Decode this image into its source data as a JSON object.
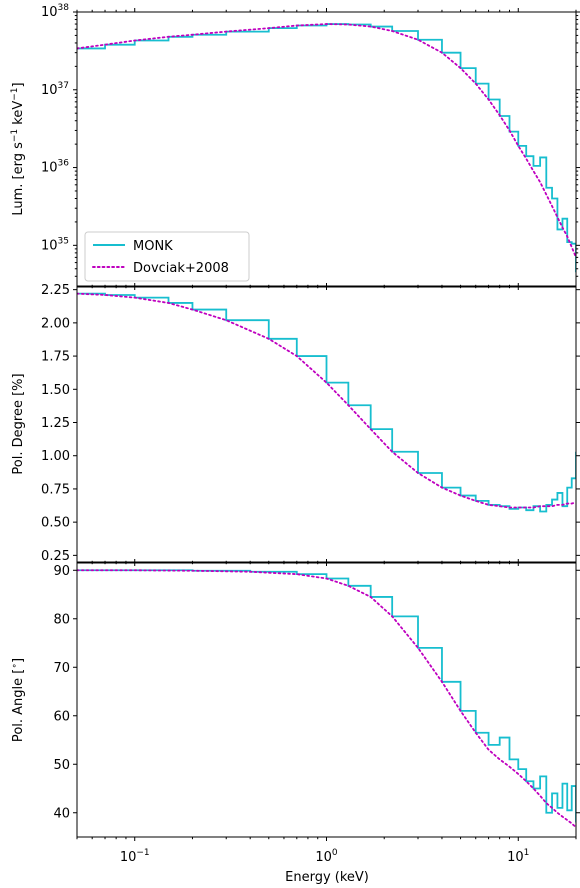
{
  "chart_data": [
    {
      "type": "line",
      "ylabel": "Lum. [erg s$^{-1}$ keV$^{-1}$]",
      "ylabel_parts": [
        "Lum. [erg s",
        "−1",
        " keV",
        "−1",
        "]"
      ],
      "xscale": "log",
      "yscale": "log",
      "xlim": [
        0.05,
        20
      ],
      "ylim": [
        3e+34,
        1e+38
      ],
      "y_ticklabels": [
        {
          "value": 1e+35,
          "base": "10",
          "exp": "35"
        },
        {
          "value": 1e+36,
          "base": "10",
          "exp": "36"
        },
        {
          "value": 1e+37,
          "base": "10",
          "exp": "37"
        },
        {
          "value": 1e+38,
          "base": "10",
          "exp": "38"
        }
      ],
      "legend": {
        "placement": "lower-left",
        "entries": [
          "MONK",
          "Dovciak+2008"
        ]
      },
      "series": [
        {
          "name": "MONK",
          "style": "solid-steps",
          "color": "#17becf",
          "x": [
            0.05,
            0.07,
            0.1,
            0.15,
            0.2,
            0.3,
            0.5,
            0.7,
            1.0,
            1.3,
            1.7,
            2.2,
            3.0,
            4.0,
            5.0,
            6.0,
            7.0,
            8.0,
            9.0,
            10.0,
            11.0,
            12.0,
            13.0,
            14.0,
            15.0,
            16.0,
            17.0,
            18.0,
            19.0,
            20.0
          ],
          "y": [
            3.4e+37,
            3.8e+37,
            4.3e+37,
            4.8e+37,
            5.1e+37,
            5.6e+37,
            6.2e+37,
            6.7e+37,
            7e+37,
            6.9e+37,
            6.5e+37,
            5.7e+37,
            4.4e+37,
            3e+37,
            1.9e+37,
            1.2e+37,
            7.5e+36,
            4.6e+36,
            2.9e+36,
            1.9e+36,
            1.4e+36,
            1.05e+36,
            1.35e+36,
            5.5e+35,
            4e+35,
            1.6e+35,
            2.2e+35,
            1.1e+35,
            1.05e+35,
            4.5e+34
          ]
        },
        {
          "name": "Dovciak+2008",
          "style": "dotted",
          "color": "#bf00bf",
          "x": [
            0.05,
            0.07,
            0.1,
            0.15,
            0.2,
            0.3,
            0.5,
            0.7,
            1.0,
            1.3,
            1.7,
            2.2,
            3.0,
            4.0,
            5.0,
            6.0,
            7.0,
            8.0,
            9.0,
            10.0,
            11.0,
            12.0,
            13.0,
            14.0,
            15.0,
            16.0,
            17.0,
            18.0,
            19.0,
            20.0
          ],
          "y": [
            3.4e+37,
            3.8e+37,
            4.3e+37,
            4.8e+37,
            5.1e+37,
            5.6e+37,
            6.2e+37,
            6.7e+37,
            7e+37,
            6.9e+37,
            6.5e+37,
            5.7e+37,
            4.4e+37,
            3e+37,
            1.9e+37,
            1.2e+37,
            7.5e+36,
            4.7e+36,
            3e+36,
            1.9e+36,
            1.3e+36,
            9e+35,
            6.5e+35,
            4.5e+35,
            3.2e+35,
            2.3e+35,
            1.7e+35,
            1.3e+35,
            9.5e+34,
            7e+34
          ]
        }
      ]
    },
    {
      "type": "line",
      "ylabel": "Pol. Degree [%]",
      "xscale": "log",
      "yscale": "linear",
      "xlim": [
        0.05,
        20
      ],
      "ylim": [
        0.2,
        2.27
      ],
      "y_ticks": [
        0.25,
        0.5,
        0.75,
        1.0,
        1.25,
        1.5,
        1.75,
        2.0,
        2.25
      ],
      "y_ticklabels": [
        "0.25",
        "0.50",
        "0.75",
        "1.00",
        "1.25",
        "1.50",
        "1.75",
        "2.00",
        "2.25"
      ],
      "series": [
        {
          "name": "MONK",
          "style": "solid-steps",
          "color": "#17becf",
          "x": [
            0.05,
            0.07,
            0.1,
            0.15,
            0.2,
            0.3,
            0.5,
            0.7,
            1.0,
            1.3,
            1.7,
            2.2,
            3.0,
            4.0,
            5.0,
            6.0,
            7.0,
            8.0,
            9.0,
            10.0,
            11.0,
            12.0,
            13.0,
            14.0,
            15.0,
            16.0,
            17.0,
            18.0,
            19.0,
            20.0
          ],
          "y": [
            2.22,
            2.21,
            2.19,
            2.15,
            2.1,
            2.02,
            1.88,
            1.75,
            1.55,
            1.38,
            1.2,
            1.03,
            0.87,
            0.76,
            0.7,
            0.66,
            0.63,
            0.62,
            0.6,
            0.61,
            0.59,
            0.62,
            0.58,
            0.63,
            0.67,
            0.72,
            0.62,
            0.76,
            0.83,
            1.03
          ]
        },
        {
          "name": "Dovciak+2008",
          "style": "dotted",
          "color": "#bf00bf",
          "x": [
            0.05,
            0.07,
            0.1,
            0.15,
            0.2,
            0.3,
            0.5,
            0.7,
            1.0,
            1.3,
            1.7,
            2.2,
            3.0,
            4.0,
            5.0,
            6.0,
            7.0,
            8.0,
            9.0,
            10.0,
            11.0,
            12.0,
            13.0,
            14.0,
            15.0,
            16.0,
            17.0,
            18.0,
            19.0,
            20.0
          ],
          "y": [
            2.22,
            2.21,
            2.19,
            2.15,
            2.1,
            2.02,
            1.88,
            1.75,
            1.55,
            1.38,
            1.2,
            1.03,
            0.87,
            0.76,
            0.7,
            0.66,
            0.63,
            0.62,
            0.61,
            0.61,
            0.61,
            0.61,
            0.62,
            0.62,
            0.62,
            0.63,
            0.63,
            0.64,
            0.64,
            0.65
          ]
        }
      ]
    },
    {
      "type": "line",
      "ylabel": "Pol. Angle [$^\\circ$]",
      "ylabel_parts": [
        "Pol. Angle [",
        "∘",
        "]"
      ],
      "xlabel": "Energy (keV)",
      "xscale": "log",
      "yscale": "linear",
      "xlim": [
        0.05,
        20
      ],
      "ylim": [
        35,
        91.5
      ],
      "y_ticks": [
        40,
        50,
        60,
        70,
        80,
        90
      ],
      "y_ticklabels": [
        "40",
        "50",
        "60",
        "70",
        "80",
        "90"
      ],
      "x_ticklabels": [
        {
          "value": 0.1,
          "base": "10",
          "exp": "−1"
        },
        {
          "value": 1,
          "base": "10",
          "exp": "0"
        },
        {
          "value": 10,
          "base": "10",
          "exp": "1"
        }
      ],
      "series": [
        {
          "name": "MONK",
          "style": "solid-steps",
          "color": "#17becf",
          "x": [
            0.05,
            0.1,
            0.2,
            0.4,
            0.7,
            1.0,
            1.3,
            1.7,
            2.2,
            3.0,
            4.0,
            5.0,
            6.0,
            7.0,
            8.0,
            9.0,
            10.0,
            11.0,
            12.0,
            13.0,
            14.0,
            15.0,
            16.0,
            17.0,
            18.0,
            19.0,
            20.0
          ],
          "y": [
            90.0,
            90.0,
            89.9,
            89.7,
            89.2,
            88.3,
            86.8,
            84.5,
            80.5,
            74.0,
            67.0,
            61.0,
            56.5,
            54.0,
            55.5,
            51.0,
            49.0,
            46.5,
            45.0,
            47.5,
            40.0,
            44.0,
            41.0,
            46.0,
            40.5,
            45.5,
            38.0
          ]
        },
        {
          "name": "Dovciak+2008",
          "style": "dotted",
          "color": "#bf00bf",
          "x": [
            0.05,
            0.1,
            0.2,
            0.4,
            0.7,
            1.0,
            1.3,
            1.7,
            2.2,
            3.0,
            4.0,
            5.0,
            6.0,
            7.0,
            8.0,
            9.0,
            10.0,
            11.0,
            12.0,
            13.0,
            14.0,
            15.0,
            16.0,
            17.0,
            18.0,
            19.0,
            20.0
          ],
          "y": [
            90.0,
            90.0,
            89.9,
            89.7,
            89.2,
            88.3,
            86.8,
            84.5,
            80.5,
            74.0,
            67.0,
            61.0,
            56.5,
            53.0,
            51.0,
            49.5,
            48.0,
            46.5,
            45.0,
            43.5,
            42.0,
            41.0,
            40.0,
            39.2,
            38.5,
            37.8,
            37.0
          ]
        }
      ]
    }
  ]
}
